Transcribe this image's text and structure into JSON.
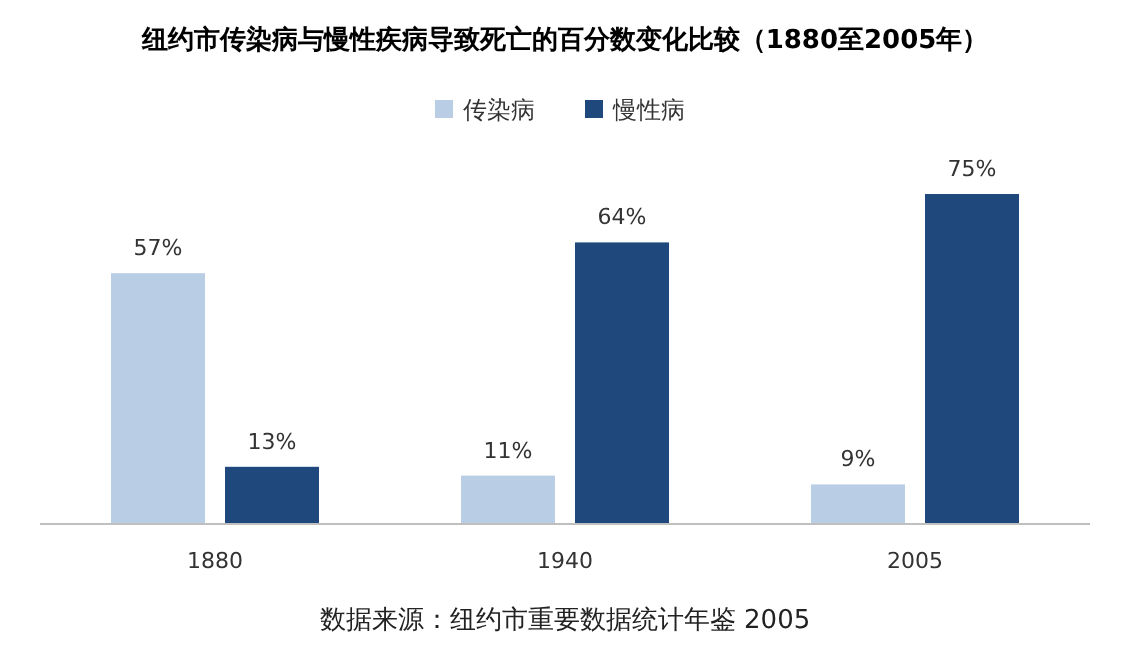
{
  "chart_data": {
    "type": "bar",
    "title": "纽约市传染病与慢性疾病导致死亡的百分数变化比较（1880至2005年）",
    "categories": [
      "1880",
      "1940",
      "2005"
    ],
    "legend": "top",
    "annotations": [
      "数据来源：纽约市重要数据统计年鉴 2005"
    ],
    "series": [
      {
        "name": "传染病",
        "color": "#b9cde5",
        "values": [
          57,
          11,
          9
        ],
        "value_labels": [
          "57%",
          "11%",
          "9%"
        ]
      },
      {
        "name": "慢性病",
        "color": "#1f497d",
        "values": [
          13,
          64,
          75
        ],
        "value_labels": [
          "13%",
          "64%",
          "75%"
        ]
      }
    ]
  }
}
